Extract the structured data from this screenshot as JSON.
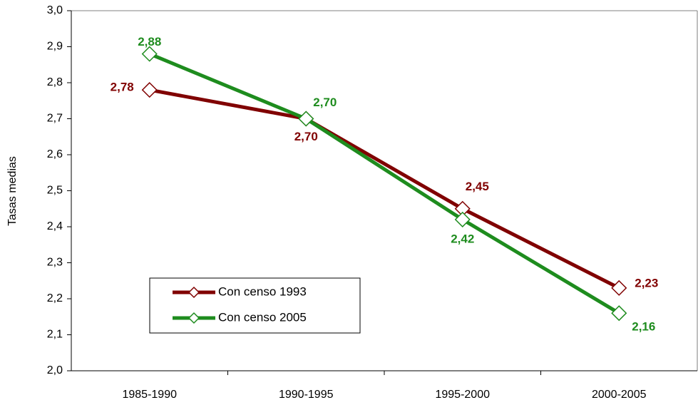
{
  "chart_data": {
    "type": "line",
    "y_label": "Tasas medias",
    "categories": [
      "1985-1990",
      "1990-1995",
      "1995-2000",
      "2000-2005"
    ],
    "series": [
      {
        "name": "Con censo 1993",
        "color": "#800000",
        "values": [
          2.78,
          2.7,
          2.45,
          2.23
        ],
        "value_labels": [
          "2,78",
          "2,70",
          "2,45",
          "2,23"
        ]
      },
      {
        "name": "Con censo 2005",
        "color": "#1e8c1e",
        "values": [
          2.88,
          2.7,
          2.42,
          2.16
        ],
        "value_labels": [
          "2,88",
          "2,70",
          "2,42",
          "2,16"
        ]
      }
    ],
    "ylim": [
      2.0,
      3.0
    ],
    "yticks": [
      {
        "value": 2.0,
        "label": "2,0"
      },
      {
        "value": 2.1,
        "label": "2,1"
      },
      {
        "value": 2.2,
        "label": "2,2"
      },
      {
        "value": 2.3,
        "label": "2,3"
      },
      {
        "value": 2.4,
        "label": "2,4"
      },
      {
        "value": 2.5,
        "label": "2,5"
      },
      {
        "value": 2.6,
        "label": "2,6"
      },
      {
        "value": 2.7,
        "label": "2,7"
      },
      {
        "value": 2.8,
        "label": "2,8"
      },
      {
        "value": 2.9,
        "label": "2,9"
      },
      {
        "value": 3.0,
        "label": "3,0"
      }
    ],
    "legend": "lower left"
  }
}
